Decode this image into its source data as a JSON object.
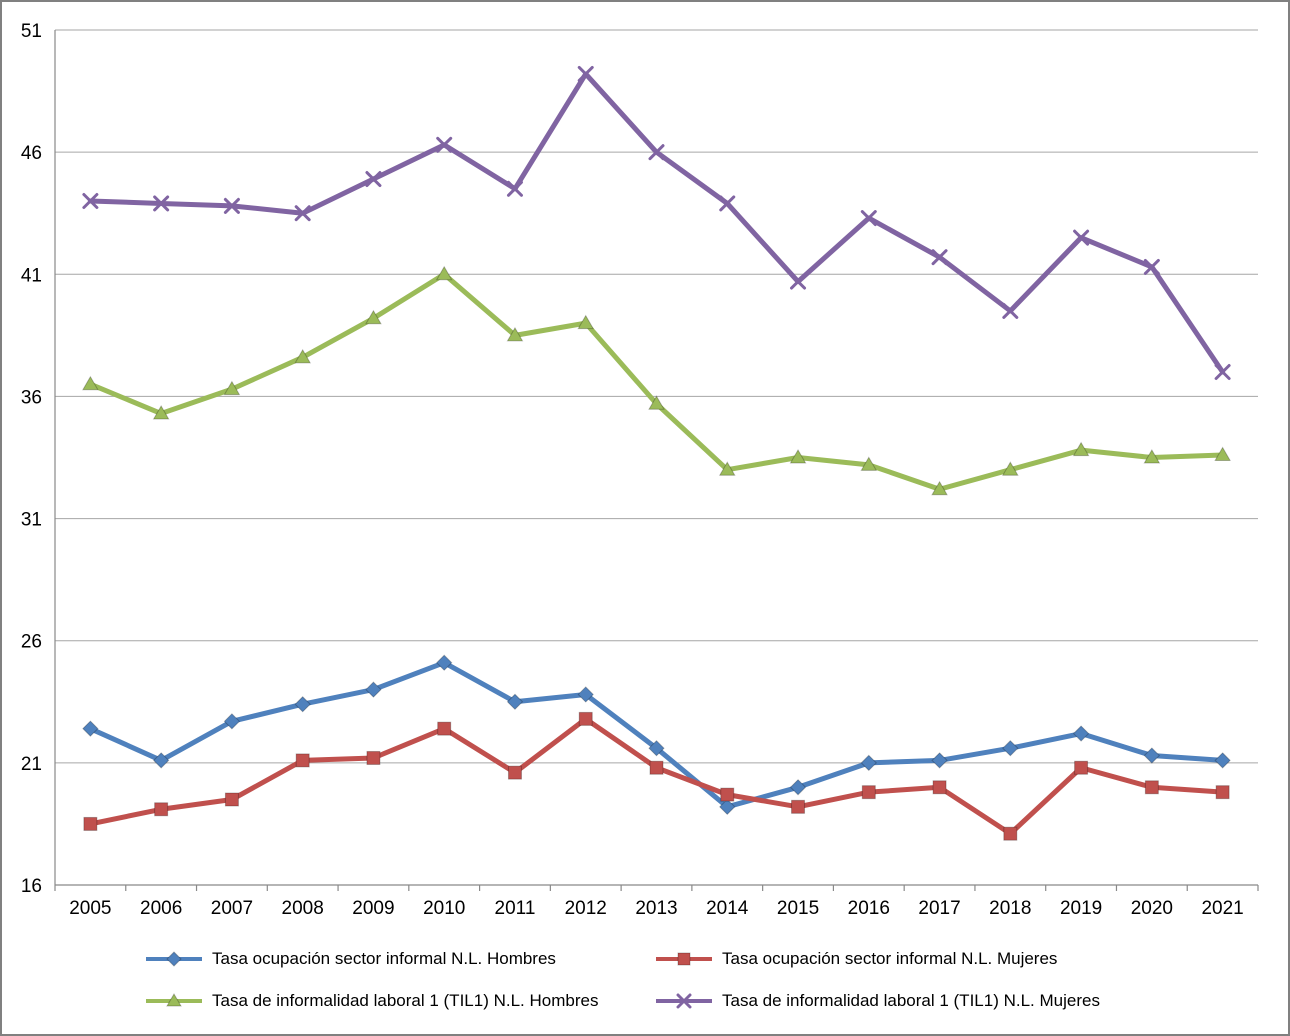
{
  "chart_data": {
    "type": "line",
    "categories": [
      "2005",
      "2006",
      "2007",
      "2008",
      "2009",
      "2010",
      "2011",
      "2012",
      "2013",
      "2014",
      "2015",
      "2016",
      "2017",
      "2018",
      "2019",
      "2020",
      "2021"
    ],
    "series": [
      {
        "name": "Tasa ocupación sector informal N.L. Hombres",
        "color": "#4F81BD",
        "marker": "diamond",
        "values": [
          22.4,
          21.1,
          22.7,
          23.4,
          24.0,
          25.1,
          23.5,
          23.8,
          21.6,
          19.2,
          20.0,
          21.0,
          21.1,
          21.6,
          22.2,
          21.3,
          21.1
        ]
      },
      {
        "name": "Tasa ocupación sector informal N.L. Mujeres",
        "color": "#C0504D",
        "marker": "square",
        "values": [
          18.5,
          19.1,
          19.5,
          21.1,
          21.2,
          22.4,
          20.6,
          22.8,
          20.8,
          19.7,
          19.2,
          19.8,
          20.0,
          18.1,
          20.8,
          20.0,
          19.8
        ]
      },
      {
        "name": "Tasa de informalidad laboral 1 (TIL1) N.L. Hombres",
        "color": "#9BBB59",
        "marker": "triangle",
        "values": [
          36.5,
          35.3,
          36.3,
          37.6,
          39.2,
          41.0,
          38.5,
          39.0,
          35.7,
          33.0,
          33.5,
          33.2,
          32.2,
          33.0,
          33.8,
          33.5,
          33.6
        ]
      },
      {
        "name": "Tasa de informalidad laboral 1 (TIL1) N.L. Mujeres",
        "color": "#8064A2",
        "marker": "x",
        "values": [
          44.0,
          43.9,
          43.8,
          43.5,
          44.9,
          46.3,
          44.5,
          49.2,
          46.0,
          43.9,
          40.7,
          43.3,
          41.7,
          39.5,
          42.5,
          41.3,
          37.0
        ]
      }
    ],
    "xlabel": "",
    "ylabel": "",
    "ylim": [
      16,
      51
    ],
    "yticks": [
      16,
      21,
      26,
      31,
      36,
      41,
      46,
      51
    ],
    "grid": "horizontal",
    "legend_position": "bottom",
    "axis_color": "#898989",
    "grid_color": "#A6A6A6",
    "tick_label_color": "#000000",
    "tick_font_size": 19
  }
}
